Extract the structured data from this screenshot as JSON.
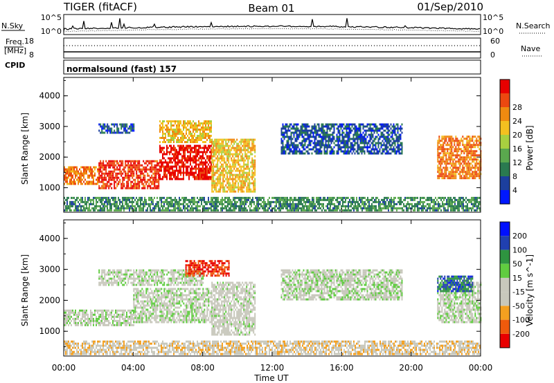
{
  "header": {
    "radar_title": "TIGER (fitACF)",
    "beam": "Beam 01",
    "date": "01/Sep/2010"
  },
  "sky_panel": {
    "left_label": "N.Sky",
    "right_label": "N.Search",
    "left_ticks": [
      "10^5",
      "10^0"
    ],
    "right_ticks": [
      "10^5",
      "10^0"
    ]
  },
  "freq_panel": {
    "label_line1": "Freq.",
    "label_line2": "[MHz]",
    "left_ticks": [
      "18",
      "8"
    ],
    "right_ticks": [
      "60",
      "0"
    ],
    "right_label": "Nave"
  },
  "cpid_panel": {
    "label": "CPID",
    "program": "normalsound (fast) 157"
  },
  "colors": {
    "power": [
      "#0018ff",
      "#1c3f9e",
      "#2a7a50",
      "#5aa84e",
      "#a8d040",
      "#f4c020",
      "#f08a10",
      "#ec4810",
      "#e80000"
    ],
    "velocity": [
      "#e80000",
      "#ef5a0c",
      "#f4a020",
      "#c8c8bc",
      "#c8c8bc",
      "#60cc40",
      "#2e9440",
      "#2040b0",
      "#0010ff"
    ],
    "axis": "#000000"
  },
  "chart_data": [
    {
      "type": "heatmap",
      "title": "Power",
      "xlabel": "Time UT",
      "ylabel": "Slant Range [km]",
      "xlim": [
        0,
        24
      ],
      "ylim": [
        200,
        4600
      ],
      "x_ticks": [
        "00:00",
        "04:00",
        "08:00",
        "12:00",
        "16:00",
        "20:00",
        "00:00"
      ],
      "y_ticks": [
        "1000",
        "2000",
        "3000",
        "4000"
      ],
      "colorbar": {
        "label": "Power [dB]",
        "ticks": [
          "4",
          "8",
          "12",
          "16",
          "20",
          "24",
          "28"
        ],
        "range": [
          0,
          32
        ]
      },
      "regions": [
        {
          "t": [
            0.0,
            2.0
          ],
          "r": [
            1100,
            1700
          ],
          "value": 24
        },
        {
          "t": [
            2.0,
            5.5
          ],
          "r": [
            1000,
            1900
          ],
          "value": 28
        },
        {
          "t": [
            5.5,
            8.5
          ],
          "r": [
            1300,
            2400
          ],
          "value": 30
        },
        {
          "t": [
            8.5,
            11.0
          ],
          "r": [
            900,
            2600
          ],
          "value": 20
        },
        {
          "t": [
            2.0,
            4.0
          ],
          "r": [
            2800,
            3100
          ],
          "value": 6
        },
        {
          "t": [
            5.5,
            8.5
          ],
          "r": [
            2500,
            3200
          ],
          "value": 20
        },
        {
          "t": [
            12.5,
            19.5
          ],
          "r": [
            2100,
            3100
          ],
          "value": 6
        },
        {
          "t": [
            21.5,
            24.0
          ],
          "r": [
            1300,
            2700
          ],
          "value": 24
        },
        {
          "t": [
            0.0,
            24.0
          ],
          "r": [
            250,
            700
          ],
          "value": 10
        }
      ]
    },
    {
      "type": "heatmap",
      "title": "Velocity",
      "xlabel": "Time UT",
      "ylabel": "Slant Range [km]",
      "xlim": [
        0,
        24
      ],
      "ylim": [
        200,
        4600
      ],
      "x_ticks": [
        "00:00",
        "04:00",
        "08:00",
        "12:00",
        "16:00",
        "20:00",
        "00:00"
      ],
      "y_ticks": [
        "1000",
        "2000",
        "3000",
        "4000"
      ],
      "colorbar": {
        "label": "Velocity [m s^-1]",
        "ticks": [
          "200",
          "100",
          "50",
          "15",
          "-15",
          "-50",
          "-100",
          "-200"
        ],
        "range": [
          -250,
          250
        ]
      },
      "regions": [
        {
          "t": [
            0.0,
            4.0
          ],
          "r": [
            1200,
            1700
          ],
          "value": 0
        },
        {
          "t": [
            4.0,
            8.5
          ],
          "r": [
            1300,
            2400
          ],
          "value": 0
        },
        {
          "t": [
            8.5,
            11.0
          ],
          "r": [
            900,
            2600
          ],
          "value": -20
        },
        {
          "t": [
            2.0,
            8.0
          ],
          "r": [
            2500,
            3000
          ],
          "value": 0
        },
        {
          "t": [
            7.0,
            9.5
          ],
          "r": [
            2800,
            3300
          ],
          "value": -200
        },
        {
          "t": [
            12.5,
            19.5
          ],
          "r": [
            2000,
            3000
          ],
          "value": 0
        },
        {
          "t": [
            21.5,
            24.0
          ],
          "r": [
            1300,
            2600
          ],
          "value": 0
        },
        {
          "t": [
            21.5,
            23.5
          ],
          "r": [
            2300,
            2800
          ],
          "value": 150
        },
        {
          "t": [
            0.0,
            24.0
          ],
          "r": [
            250,
            700
          ],
          "value": -60
        }
      ]
    }
  ]
}
